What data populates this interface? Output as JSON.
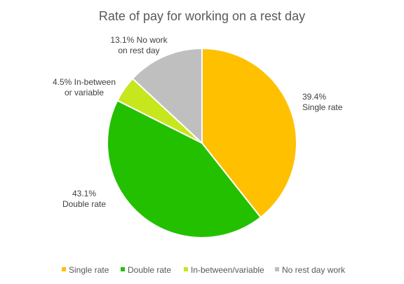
{
  "chart_data": {
    "type": "pie",
    "title": "Rate of pay for working on a rest day",
    "legend_position": "bottom",
    "slices": [
      {
        "label": "Single rate",
        "value": 39.4,
        "color": "#FFC000",
        "data_label_lines": [
          "39.4%",
          "Single rate"
        ]
      },
      {
        "label": "Double rate",
        "value": 43.1,
        "color": "#23C000",
        "data_label_lines": [
          "43.1%",
          "Double rate"
        ]
      },
      {
        "label": "In-between/variable",
        "value": 4.5,
        "color": "#C6E61E",
        "data_label_lines": [
          "4.5% In-between",
          "or variable"
        ]
      },
      {
        "label": "No rest day work",
        "value": 13.1,
        "color": "#BFBFBF",
        "data_label_lines": [
          "13.1% No work",
          "on rest day"
        ]
      }
    ]
  }
}
